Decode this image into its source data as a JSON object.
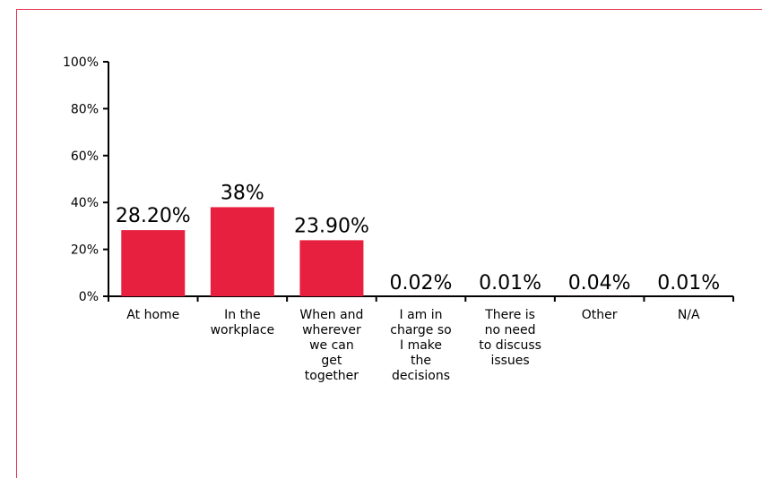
{
  "chart_data": {
    "type": "bar",
    "categories": [
      [
        "At home"
      ],
      [
        "In the",
        "workplace"
      ],
      [
        "When and",
        "wherever",
        "we can",
        "get",
        "together"
      ],
      [
        "I am in",
        "charge so",
        "I make",
        "the",
        "decisions"
      ],
      [
        "There is",
        "no need",
        "to discuss",
        "issues"
      ],
      [
        "Other"
      ],
      [
        "N/A"
      ]
    ],
    "values": [
      28.2,
      38,
      23.9,
      0.02,
      0.01,
      0.04,
      0.01
    ],
    "data_labels": [
      "28.20%",
      "38%",
      "23.90%",
      "0.02%",
      "0.01%",
      "0.04%",
      "0.01%"
    ],
    "yticks": [
      0,
      20,
      40,
      60,
      80,
      100
    ],
    "ytick_labels": [
      "0%",
      "20%",
      "40%",
      "60%",
      "80%",
      "100%"
    ],
    "ylim": [
      0,
      100
    ],
    "title": "",
    "xlabel": "",
    "ylabel": "",
    "grid": false,
    "bar_color": "#e8203f",
    "axis_color": "#000000",
    "frame_color": "#e8324f"
  }
}
